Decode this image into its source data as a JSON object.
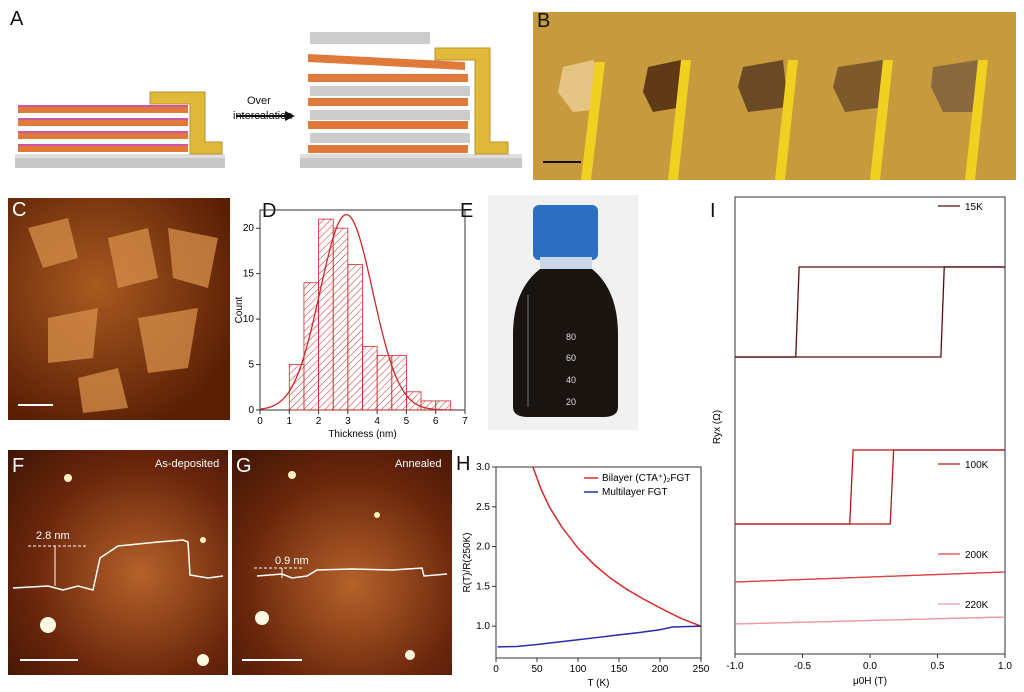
{
  "panels": {
    "A": {
      "letter": "A",
      "arrow_label_line1": "Over",
      "arrow_label_line2": "intercalation"
    },
    "B": {
      "letter": "B"
    },
    "C": {
      "letter": "C"
    },
    "D": {
      "letter": "D"
    },
    "E": {
      "letter": "E",
      "bottle_marks": [
        "80",
        "60",
        "40",
        "20"
      ]
    },
    "F": {
      "letter": "F",
      "label": "As-deposited",
      "height_label": "2.8 nm"
    },
    "G": {
      "letter": "G",
      "label": "Annealed",
      "height_label": "0.9 nm"
    },
    "H": {
      "letter": "H"
    },
    "I": {
      "letter": "I"
    }
  },
  "colors": {
    "gold": "#e0b83a",
    "afm_dark": "#5a1e05",
    "afm_light": "#c8732e",
    "hist_red": "#cc2a2a",
    "bilayer": "#d42a2a",
    "multilayer": "#2a2aa8",
    "k15": "#5a0a0a",
    "k100": "#b01818",
    "k200": "#d84545",
    "k220": "#ee9aa6"
  },
  "chart_data": [
    {
      "panel": "D",
      "type": "bar",
      "xlabel": "Thickness (nm)",
      "ylabel": "Count",
      "xlim": [
        0,
        7
      ],
      "ylim": [
        0,
        22
      ],
      "xticks": [
        "0",
        "1",
        "2",
        "3",
        "4",
        "5",
        "6",
        "7"
      ],
      "yticks": [
        "0",
        "5",
        "10",
        "15",
        "20"
      ],
      "bin_edges": [
        1.0,
        1.5,
        2.0,
        2.5,
        3.0,
        3.5,
        4.0,
        4.5,
        5.0,
        5.5,
        6.0,
        6.5
      ],
      "counts": [
        5,
        14,
        21,
        20,
        16,
        7,
        6,
        6,
        2,
        1,
        1
      ],
      "fit": {
        "type": "gaussian",
        "peak_x": 2.95,
        "peak_y": 21.5,
        "sigma": 0.9
      }
    },
    {
      "panel": "H",
      "type": "line",
      "xlabel": "T (K)",
      "ylabel": "R(T)/R(250K)",
      "xlim": [
        0,
        250
      ],
      "ylim": [
        0.6,
        3.0
      ],
      "xticks": [
        "0",
        "50",
        "100",
        "150",
        "200",
        "250"
      ],
      "yticks": [
        "1.0",
        "1.5",
        "2.0",
        "2.5",
        "3.0"
      ],
      "series": [
        {
          "name": "Bilayer (CTA⁺)₂FGT",
          "x": [
            45,
            55,
            65,
            80,
            100,
            120,
            140,
            160,
            180,
            200,
            225,
            250
          ],
          "y": [
            3.0,
            2.72,
            2.5,
            2.25,
            1.98,
            1.77,
            1.6,
            1.46,
            1.34,
            1.23,
            1.1,
            1.0
          ]
        },
        {
          "name": "Multilayer FGT",
          "x": [
            2,
            25,
            50,
            75,
            100,
            125,
            150,
            175,
            200,
            215,
            230,
            250
          ],
          "y": [
            0.74,
            0.745,
            0.77,
            0.8,
            0.83,
            0.86,
            0.89,
            0.92,
            0.955,
            0.99,
            0.995,
            1.0
          ]
        }
      ]
    },
    {
      "panel": "I",
      "type": "line",
      "xlabel": "μ0H (T)",
      "ylabel": "Ryx (Ω)",
      "xlim": [
        -1.0,
        1.0
      ],
      "xticks": [
        "-1.0",
        "-0.5",
        "0.0",
        "0.5",
        "1.0"
      ],
      "legend": [
        "15K",
        "100K",
        "200K",
        "220K"
      ],
      "coercive_field_T": {
        "15K": 0.53,
        "100K": 0.15,
        "200K": 0,
        "220K": 0
      }
    }
  ]
}
